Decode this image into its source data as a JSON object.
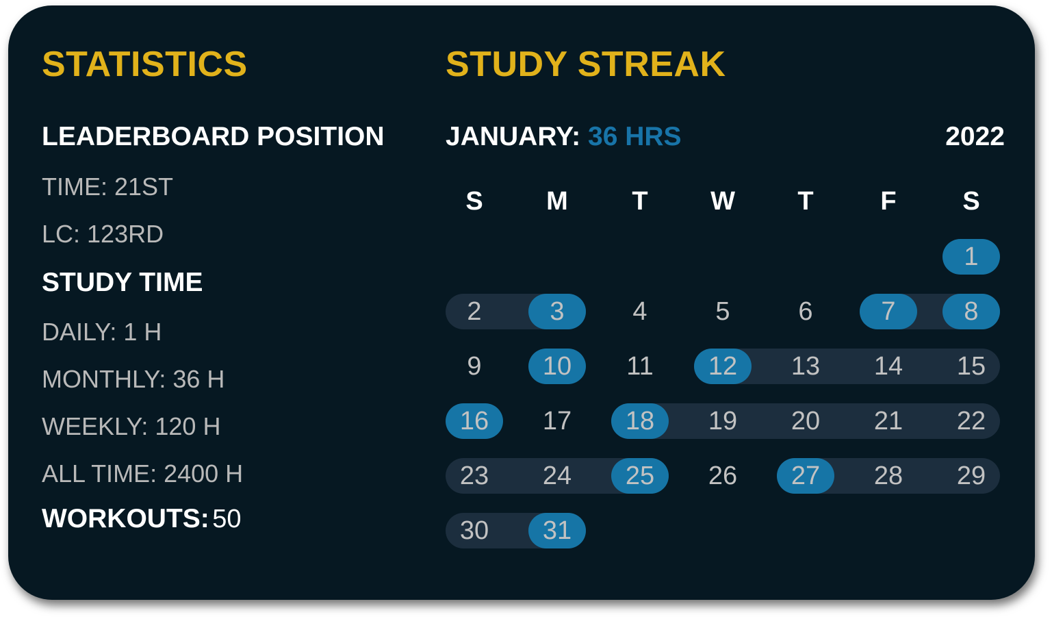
{
  "statistics": {
    "title": "STATISTICS",
    "leaderboard_heading": "LEADERBOARD POSITION",
    "leaderboard": [
      "TIME: 21ST",
      "LC: 123RD"
    ],
    "study_time_heading": "STUDY TIME",
    "study_time": [
      "DAILY: 1 H",
      "MONTHLY: 36 H",
      "WEEKLY: 120 H",
      "ALL TIME: 2400 H"
    ],
    "workouts_label": "WORKOUTS:",
    "workouts_value": "50"
  },
  "streak": {
    "title": "STUDY STREAK",
    "month_label": "JANUARY:",
    "month_hours": "36 HRS",
    "year": "2022",
    "weekdays": [
      "S",
      "M",
      "T",
      "W",
      "T",
      "F",
      "S"
    ],
    "first_weekday_index": 6,
    "days_in_month": 31,
    "highlighted_days": [
      1,
      3,
      7,
      8,
      10,
      12,
      16,
      18,
      25,
      27,
      31
    ],
    "streak_ranges": [
      [
        2,
        3
      ],
      [
        7,
        8
      ],
      [
        12,
        15
      ],
      [
        18,
        22
      ],
      [
        23,
        25
      ],
      [
        27,
        29
      ],
      [
        30,
        31
      ]
    ]
  },
  "colors": {
    "background": "#061822",
    "accent_yellow": "#e1b21b",
    "accent_blue": "#1675a6",
    "streak_band": "#1c2e3e"
  }
}
